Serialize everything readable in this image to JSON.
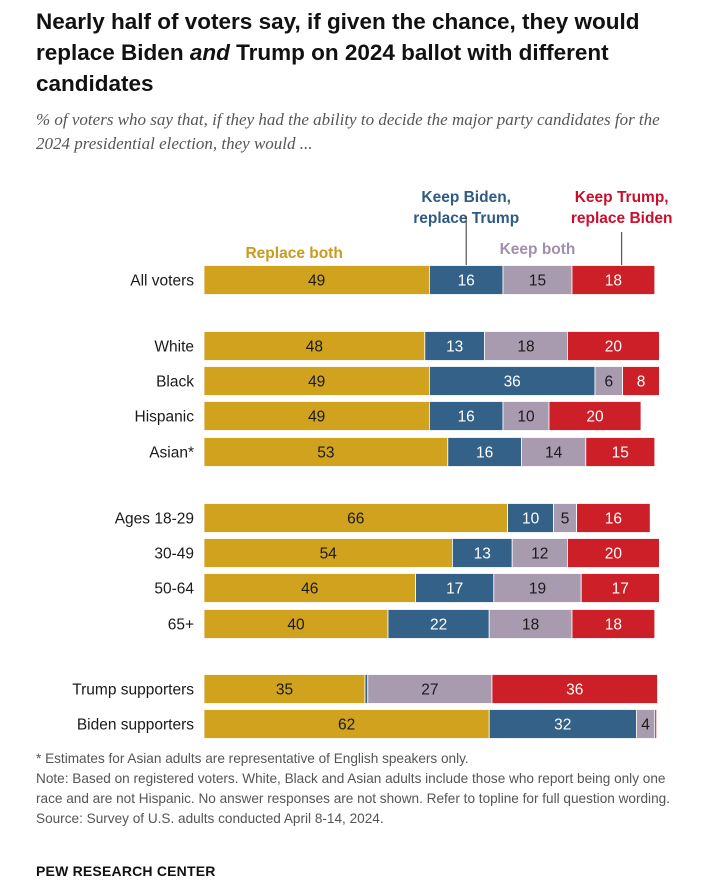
{
  "header": {
    "title_pre": "Nearly half of voters say, if given the chance, they would replace Biden ",
    "title_em": "and",
    "title_post": " Trump on 2024 ballot with different candidates",
    "subtitle": "% of voters who say that, if they had the ability to decide the major party candidates for the 2024 presidential election, they would ..."
  },
  "chart_data": {
    "type": "bar",
    "orientation": "horizontal",
    "stacked": true,
    "categories": [
      "All voters",
      "White",
      "Black",
      "Hispanic",
      "Asian*",
      "Ages 18-29",
      "30-49",
      "50-64",
      "65+",
      "Trump supporters",
      "Biden supporters"
    ],
    "groups": [
      [
        0
      ],
      [
        1,
        2,
        3,
        4
      ],
      [
        5,
        6,
        7,
        8
      ],
      [
        9,
        10
      ]
    ],
    "series": [
      {
        "name": "Replace both",
        "color": "#D0A21E",
        "values": [
          49,
          48,
          49,
          49,
          53,
          66,
          54,
          46,
          40,
          35,
          62
        ]
      },
      {
        "name": "Keep Biden, replace Trump",
        "color": "#346187",
        "values": [
          16,
          13,
          36,
          16,
          16,
          10,
          13,
          17,
          22,
          0.6,
          32
        ]
      },
      {
        "name": "Keep both",
        "color": "#A89BB0",
        "values": [
          15,
          18,
          6,
          10,
          14,
          5,
          12,
          19,
          18,
          27,
          4
        ]
      },
      {
        "name": "Keep Trump, replace Biden",
        "color": "#CC1F27",
        "values": [
          18,
          20,
          8,
          20,
          15,
          16,
          20,
          17,
          18,
          36,
          0.4
        ]
      }
    ],
    "labels": [
      [
        "49",
        "48",
        "49",
        "49",
        "53",
        "66",
        "54",
        "46",
        "40",
        "35",
        "62"
      ],
      [
        "16",
        "13",
        "36",
        "16",
        "16",
        "10",
        "13",
        "17",
        "22",
        "",
        "32"
      ],
      [
        "15",
        "18",
        "6",
        "10",
        "14",
        "5",
        "12",
        "19",
        "18",
        "27",
        "4"
      ],
      [
        "18",
        "20",
        "8",
        "20",
        "15",
        "16",
        "20",
        "17",
        "18",
        "36",
        ""
      ]
    ],
    "legend": [
      {
        "lines": [
          "Replace both"
        ],
        "color": "#C99A1C"
      },
      {
        "lines": [
          "Keep Biden,",
          "replace Trump"
        ],
        "color": "#2E5A84"
      },
      {
        "lines": [
          "Keep both"
        ],
        "color": "#A08FAD"
      },
      {
        "lines": [
          "Keep Trump,",
          "replace Biden"
        ],
        "color": "#C8102E"
      }
    ],
    "legend_position": "above-first-bar",
    "xlim": [
      0,
      100
    ]
  },
  "footer": {
    "note_asian": "* Estimates for Asian adults are representative of English speakers only.",
    "note_main": "Note: Based on registered voters. White, Black and Asian adults include those who report being only one race and are not Hispanic. No answer responses are not shown. Refer to topline for full question wording.",
    "source": "Source: Survey of U.S. adults conducted April 8-14, 2024.",
    "brand": "PEW RESEARCH CENTER"
  }
}
